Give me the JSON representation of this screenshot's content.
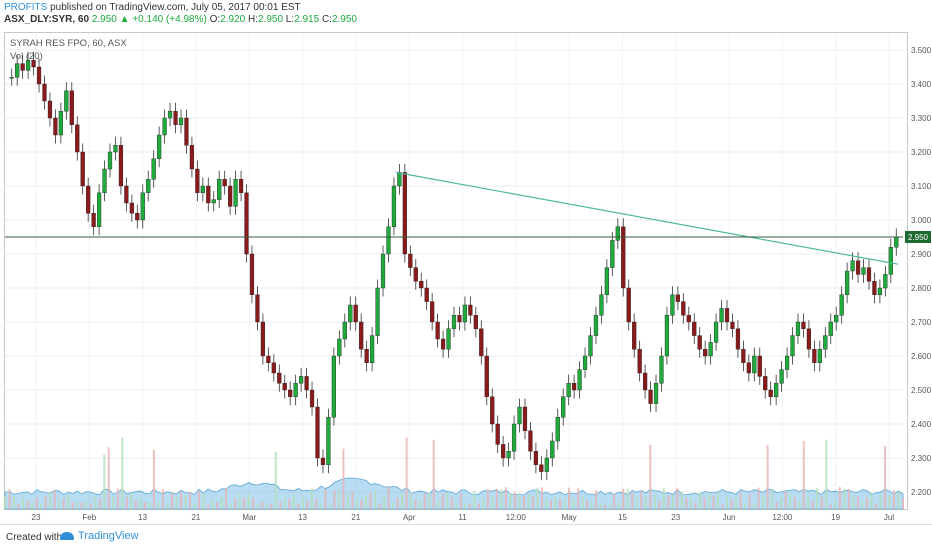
{
  "header": {
    "author": "PROFITS",
    "published_text": "published on TradingView.com, July 05, 2017 00:01 EST",
    "symbol": "ASX_DLY:SYR, 60",
    "last_price": "2.950",
    "change": "+0.140 (+4.98%)",
    "ohlc": {
      "o": "2.920",
      "h": "2.950",
      "l": "2.915",
      "c": "2.950"
    }
  },
  "legend": {
    "title": "SYRAH RES FPO, 60, ASX",
    "volume_label": "Vol (20)"
  },
  "footer": {
    "created_with": "Created with",
    "brand": "TradingView"
  },
  "colors": {
    "up": "#1faa3c",
    "down": "#8b1a1a",
    "trendline": "#4dbb97",
    "volume_area": "#7dbfe8",
    "price_line": "#345b3a"
  },
  "chart_data": {
    "type": "candlestick",
    "y_axis": {
      "min": 2.15,
      "max": 3.55,
      "ticks": [
        "3.500",
        "3.400",
        "3.300",
        "3.200",
        "3.100",
        "3.000",
        "2.900",
        "2.800",
        "2.700",
        "2.600",
        "2.500",
        "2.400",
        "2.300",
        "2.200"
      ]
    },
    "x_axis": {
      "ticks": [
        "23",
        "Feb",
        "13",
        "21",
        "Mar",
        "13",
        "21",
        "Apr",
        "11",
        "12:00",
        "May",
        "15",
        "23",
        "Jun",
        "12:00",
        "19",
        "Jul"
      ]
    },
    "current_price": {
      "value": 2.95,
      "label": "2.950"
    },
    "trendline": {
      "start": 3.14,
      "end": 2.87
    },
    "close_path": [
      3.42,
      3.46,
      3.44,
      3.47,
      3.45,
      3.4,
      3.35,
      3.3,
      3.25,
      3.32,
      3.38,
      3.28,
      3.2,
      3.1,
      3.02,
      2.98,
      3.08,
      3.15,
      3.2,
      3.22,
      3.1,
      3.05,
      3.02,
      3.0,
      3.08,
      3.12,
      3.18,
      3.25,
      3.3,
      3.32,
      3.28,
      3.3,
      3.22,
      3.15,
      3.08,
      3.1,
      3.05,
      3.06,
      3.12,
      3.1,
      3.04,
      3.12,
      3.08,
      2.9,
      2.78,
      2.7,
      2.6,
      2.58,
      2.55,
      2.52,
      2.5,
      2.48,
      2.52,
      2.54,
      2.5,
      2.45,
      2.3,
      2.28,
      2.42,
      2.6,
      2.65,
      2.7,
      2.75,
      2.7,
      2.62,
      2.58,
      2.66,
      2.8,
      2.9,
      2.98,
      3.1,
      3.14,
      2.9,
      2.86,
      2.82,
      2.8,
      2.76,
      2.7,
      2.65,
      2.62,
      2.68,
      2.72,
      2.7,
      2.75,
      2.72,
      2.68,
      2.6,
      2.48,
      2.4,
      2.34,
      2.3,
      2.32,
      2.4,
      2.45,
      2.38,
      2.32,
      2.28,
      2.26,
      2.3,
      2.35,
      2.42,
      2.48,
      2.52,
      2.5,
      2.56,
      2.6,
      2.66,
      2.72,
      2.78,
      2.86,
      2.94,
      2.98,
      2.8,
      2.7,
      2.62,
      2.55,
      2.5,
      2.46,
      2.52,
      2.6,
      2.72,
      2.78,
      2.76,
      2.72,
      2.7,
      2.66,
      2.62,
      2.6,
      2.64,
      2.7,
      2.74,
      2.7,
      2.68,
      2.62,
      2.58,
      2.55,
      2.6,
      2.54,
      2.5,
      2.48,
      2.52,
      2.56,
      2.6,
      2.66,
      2.7,
      2.68,
      2.62,
      2.58,
      2.62,
      2.66,
      2.7,
      2.72,
      2.78,
      2.85,
      2.88,
      2.84,
      2.86,
      2.82,
      2.78,
      2.8,
      2.84,
      2.92,
      2.95
    ]
  }
}
